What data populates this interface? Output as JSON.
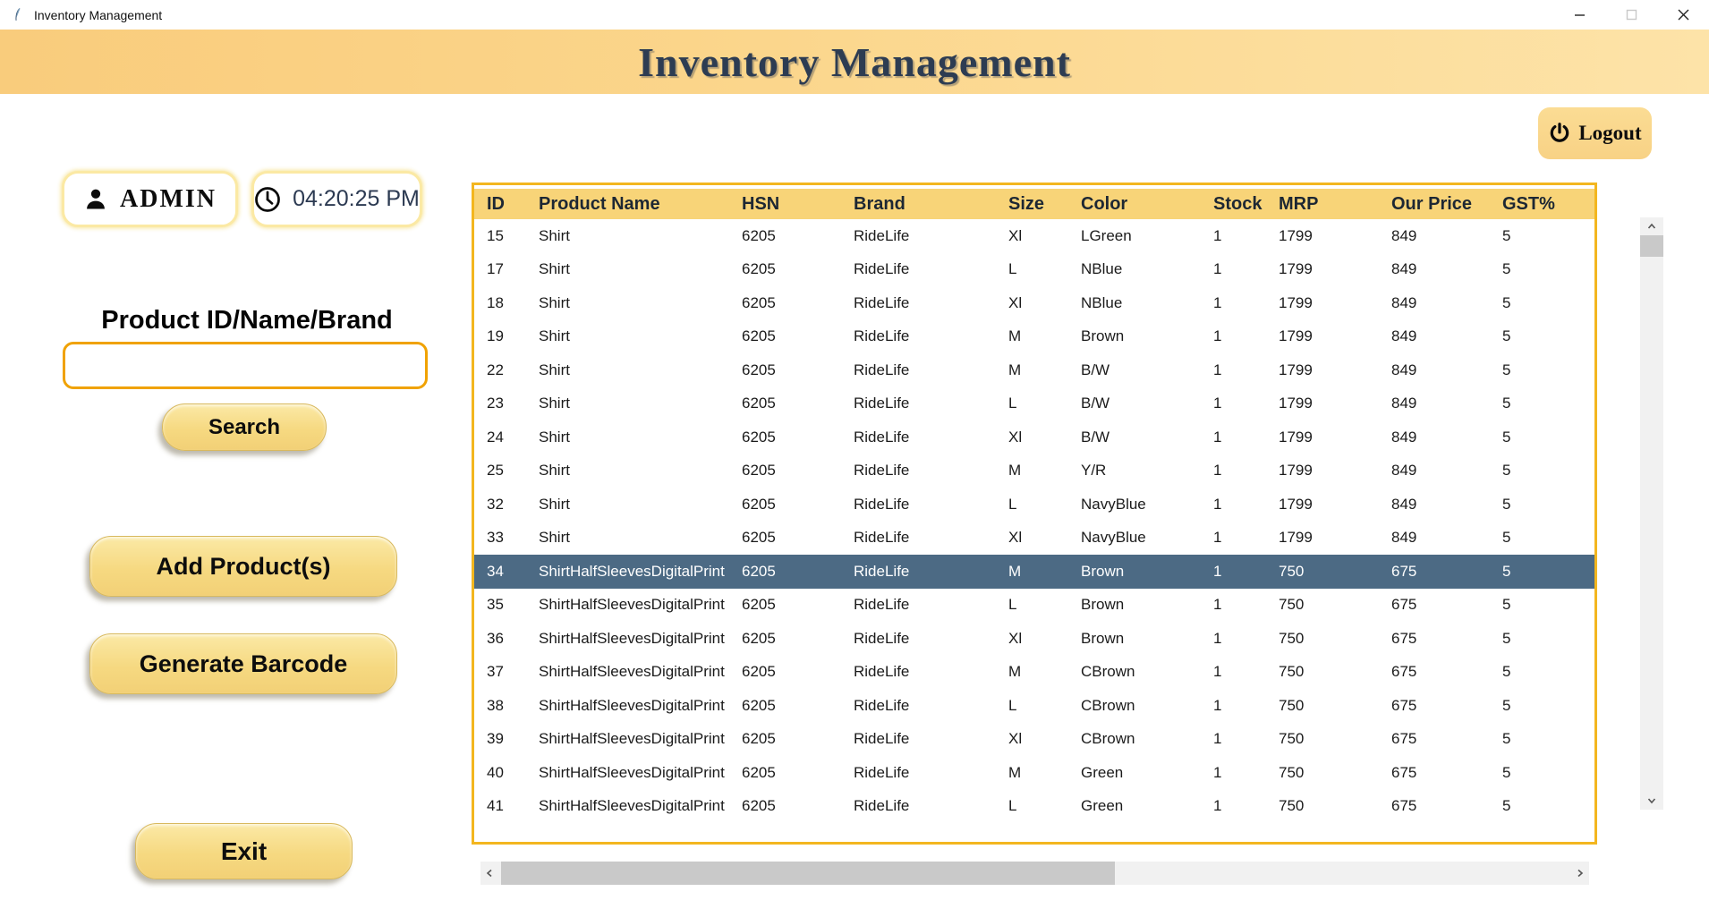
{
  "window": {
    "title": "Inventory Management",
    "controls": {
      "minimize": "minimize",
      "maximize": "maximize",
      "close": "close"
    }
  },
  "banner": {
    "title": "Inventory Management"
  },
  "logout": {
    "label": "Logout",
    "icon": "power-icon"
  },
  "user": {
    "label": "ADMIN",
    "icon": "person-icon"
  },
  "clock": {
    "time": "04:20:25 PM",
    "icon": "clock-icon"
  },
  "search": {
    "label": "Product ID/Name/Brand",
    "value": "",
    "button_label": "Search"
  },
  "actions": {
    "add_label": "Add Product(s)",
    "barcode_label": "Generate Barcode",
    "exit_label": "Exit"
  },
  "table": {
    "columns": [
      "ID",
      "Product Name",
      "HSN",
      "Brand",
      "Size",
      "Color",
      "Stock",
      "MRP",
      "Our Price",
      "GST%"
    ],
    "selected_id": "34",
    "rows": [
      [
        "15",
        "Shirt",
        "6205",
        "RideLife",
        "Xl",
        "LGreen",
        "1",
        "1799",
        "849",
        "5"
      ],
      [
        "17",
        "Shirt",
        "6205",
        "RideLife",
        "L",
        "NBlue",
        "1",
        "1799",
        "849",
        "5"
      ],
      [
        "18",
        "Shirt",
        "6205",
        "RideLife",
        "Xl",
        "NBlue",
        "1",
        "1799",
        "849",
        "5"
      ],
      [
        "19",
        "Shirt",
        "6205",
        "RideLife",
        "M",
        "Brown",
        "1",
        "1799",
        "849",
        "5"
      ],
      [
        "22",
        "Shirt",
        "6205",
        "RideLife",
        "M",
        "B/W",
        "1",
        "1799",
        "849",
        "5"
      ],
      [
        "23",
        "Shirt",
        "6205",
        "RideLife",
        "L",
        "B/W",
        "1",
        "1799",
        "849",
        "5"
      ],
      [
        "24",
        "Shirt",
        "6205",
        "RideLife",
        "Xl",
        "B/W",
        "1",
        "1799",
        "849",
        "5"
      ],
      [
        "25",
        "Shirt",
        "6205",
        "RideLife",
        "M",
        "Y/R",
        "1",
        "1799",
        "849",
        "5"
      ],
      [
        "32",
        "Shirt",
        "6205",
        "RideLife",
        "L",
        "NavyBlue",
        "1",
        "1799",
        "849",
        "5"
      ],
      [
        "33",
        "Shirt",
        "6205",
        "RideLife",
        "Xl",
        "NavyBlue",
        "1",
        "1799",
        "849",
        "5"
      ],
      [
        "34",
        "ShirtHalfSleevesDigitalPrint",
        "6205",
        "RideLife",
        "M",
        "Brown",
        "1",
        "750",
        "675",
        "5"
      ],
      [
        "35",
        "ShirtHalfSleevesDigitalPrint",
        "6205",
        "RideLife",
        "L",
        "Brown",
        "1",
        "750",
        "675",
        "5"
      ],
      [
        "36",
        "ShirtHalfSleevesDigitalPrint",
        "6205",
        "RideLife",
        "Xl",
        "Brown",
        "1",
        "750",
        "675",
        "5"
      ],
      [
        "37",
        "ShirtHalfSleevesDigitalPrint",
        "6205",
        "RideLife",
        "M",
        "CBrown",
        "1",
        "750",
        "675",
        "5"
      ],
      [
        "38",
        "ShirtHalfSleevesDigitalPrint",
        "6205",
        "RideLife",
        "L",
        "CBrown",
        "1",
        "750",
        "675",
        "5"
      ],
      [
        "39",
        "ShirtHalfSleevesDigitalPrint",
        "6205",
        "RideLife",
        "Xl",
        "CBrown",
        "1",
        "750",
        "675",
        "5"
      ],
      [
        "40",
        "ShirtHalfSleevesDigitalPrint",
        "6205",
        "RideLife",
        "M",
        "Green",
        "1",
        "750",
        "675",
        "5"
      ],
      [
        "41",
        "ShirtHalfSleevesDigitalPrint",
        "6205",
        "RideLife",
        "L",
        "Green",
        "1",
        "750",
        "675",
        "5"
      ]
    ]
  },
  "colors": {
    "banner": "#fbd68c",
    "table_border": "#f3b61f",
    "table_header_bg": "#f8d478",
    "selected_row_bg": "#4c6a84",
    "button_fill": "#f6d981",
    "input_border": "#f0a202",
    "time_text": "#2c3a52"
  }
}
